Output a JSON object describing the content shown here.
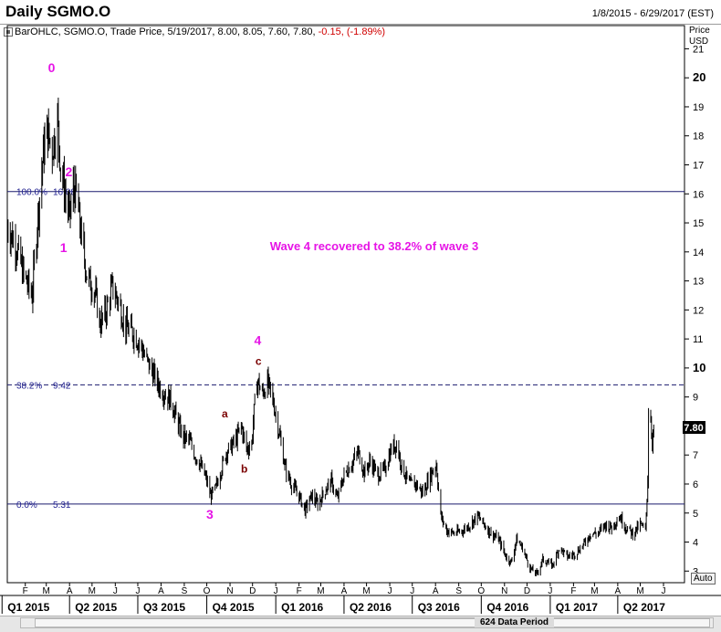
{
  "header": {
    "title": "Daily SGMO.O",
    "date_range": "1/8/2015 - 6/29/2017 (EST)",
    "ohlc_info": "BarOHLC, SGMO.O, Trade Price, 5/19/2017, 8.00, 8.05, 7.60, 7.80,",
    "change": "-0.15, (-1.89%)"
  },
  "axis": {
    "price_unit_line1": "Price",
    "price_unit_line2": "USD",
    "last_price": "7.80"
  },
  "footer": {
    "data_period": "624 Data Period",
    "auto_label": "Auto"
  },
  "annotation_text": "Wave 4 recovered to 38.2% of wave 3",
  "colors": {
    "wave_label": "#e614e6",
    "abc_label": "#7a0000",
    "fib_line": "#1a1a6e",
    "fib_text": "#1f1f8f",
    "bars": "#000000"
  },
  "chart_data": {
    "type": "ohlc",
    "title": "Daily SGMO.O",
    "x_range": [
      "2015-01-08",
      "2017-06-29"
    ],
    "y_range": [
      2.6,
      21.8
    ],
    "y_ticks": [
      3,
      4,
      5,
      6,
      7,
      8,
      9,
      10,
      11,
      12,
      13,
      14,
      15,
      16,
      17,
      18,
      19,
      20,
      21
    ],
    "bold_ticks": [
      10,
      20
    ],
    "month_labels": [
      {
        "label": "F",
        "date": "2015-02-01"
      },
      {
        "label": "M",
        "date": "2015-03-01"
      },
      {
        "label": "A",
        "date": "2015-04-01"
      },
      {
        "label": "M",
        "date": "2015-05-01"
      },
      {
        "label": "J",
        "date": "2015-06-01"
      },
      {
        "label": "J",
        "date": "2015-07-01"
      },
      {
        "label": "A",
        "date": "2015-08-01"
      },
      {
        "label": "S",
        "date": "2015-09-01"
      },
      {
        "label": "O",
        "date": "2015-10-01"
      },
      {
        "label": "N",
        "date": "2015-11-01"
      },
      {
        "label": "D",
        "date": "2015-12-01"
      },
      {
        "label": "J",
        "date": "2016-01-01"
      },
      {
        "label": "F",
        "date": "2016-02-01"
      },
      {
        "label": "M",
        "date": "2016-03-01"
      },
      {
        "label": "A",
        "date": "2016-04-01"
      },
      {
        "label": "M",
        "date": "2016-05-01"
      },
      {
        "label": "J",
        "date": "2016-06-01"
      },
      {
        "label": "J",
        "date": "2016-07-01"
      },
      {
        "label": "A",
        "date": "2016-08-01"
      },
      {
        "label": "S",
        "date": "2016-09-01"
      },
      {
        "label": "O",
        "date": "2016-10-01"
      },
      {
        "label": "N",
        "date": "2016-11-01"
      },
      {
        "label": "D",
        "date": "2016-12-01"
      },
      {
        "label": "J",
        "date": "2017-01-01"
      },
      {
        "label": "F",
        "date": "2017-02-01"
      },
      {
        "label": "M",
        "date": "2017-03-01"
      },
      {
        "label": "A",
        "date": "2017-04-01"
      },
      {
        "label": "M",
        "date": "2017-05-01"
      },
      {
        "label": "J",
        "date": "2017-06-01"
      }
    ],
    "quarter_labels": [
      {
        "label": "Q1 2015",
        "date": "2015-01-01"
      },
      {
        "label": "Q2 2015",
        "date": "2015-04-01"
      },
      {
        "label": "Q3 2015",
        "date": "2015-07-01"
      },
      {
        "label": "Q4 2015",
        "date": "2015-10-01"
      },
      {
        "label": "Q1 2016",
        "date": "2016-01-01"
      },
      {
        "label": "Q2 2016",
        "date": "2016-04-01"
      },
      {
        "label": "Q3 2016",
        "date": "2016-07-01"
      },
      {
        "label": "Q4 2016",
        "date": "2016-10-01"
      },
      {
        "label": "Q1 2017",
        "date": "2017-01-01"
      },
      {
        "label": "Q2 2017",
        "date": "2017-04-01"
      }
    ],
    "fib_levels": [
      {
        "pct": "100.0%",
        "value": 16.08,
        "value_label": "16.08",
        "style": "solid"
      },
      {
        "pct": "38.2%",
        "value": 9.42,
        "value_label": "9.42",
        "style": "dashed"
      },
      {
        "pct": "0.0%",
        "value": 5.31,
        "value_label": "5.31",
        "style": "solid"
      }
    ],
    "price_path": [
      [
        "2015-01-08",
        14.9
      ],
      [
        "2015-01-20",
        14.2
      ],
      [
        "2015-01-30",
        13.2
      ],
      [
        "2015-02-10",
        12.5
      ],
      [
        "2015-02-18",
        15.3
      ],
      [
        "2015-02-25",
        17.4
      ],
      [
        "2015-03-02",
        18.2
      ],
      [
        "2015-03-09",
        17.5
      ],
      [
        "2015-03-16",
        18.6
      ],
      [
        "2015-03-20",
        17.0
      ],
      [
        "2015-03-26",
        16.0
      ],
      [
        "2015-04-01",
        15.2
      ],
      [
        "2015-04-06",
        16.2
      ],
      [
        "2015-04-10",
        16.0
      ],
      [
        "2015-04-16",
        14.7
      ],
      [
        "2015-04-24",
        13.2
      ],
      [
        "2015-05-05",
        12.6
      ],
      [
        "2015-05-12",
        11.5
      ],
      [
        "2015-05-20",
        12.0
      ],
      [
        "2015-05-28",
        12.8
      ],
      [
        "2015-06-05",
        12.3
      ],
      [
        "2015-06-15",
        11.4
      ],
      [
        "2015-06-25",
        11.2
      ],
      [
        "2015-07-05",
        10.8
      ],
      [
        "2015-07-12",
        10.3
      ],
      [
        "2015-07-20",
        9.9
      ],
      [
        "2015-07-29",
        9.4
      ],
      [
        "2015-08-06",
        9.1
      ],
      [
        "2015-08-14",
        8.9
      ],
      [
        "2015-08-22",
        8.2
      ],
      [
        "2015-08-31",
        7.6
      ],
      [
        "2015-09-08",
        7.5
      ],
      [
        "2015-09-15",
        7.0
      ],
      [
        "2015-09-22",
        6.7
      ],
      [
        "2015-09-30",
        6.2
      ],
      [
        "2015-10-06",
        5.6
      ],
      [
        "2015-10-12",
        5.8
      ],
      [
        "2015-10-19",
        6.4
      ],
      [
        "2015-10-27",
        7.1
      ],
      [
        "2015-11-03",
        7.3
      ],
      [
        "2015-11-10",
        7.6
      ],
      [
        "2015-11-16",
        8.0
      ],
      [
        "2015-11-23",
        7.2
      ],
      [
        "2015-11-30",
        7.4
      ],
      [
        "2015-12-03",
        8.5
      ],
      [
        "2015-12-07",
        9.6
      ],
      [
        "2015-12-14",
        9.1
      ],
      [
        "2015-12-21",
        9.5
      ],
      [
        "2015-12-29",
        8.8
      ],
      [
        "2016-01-06",
        7.7
      ],
      [
        "2016-01-14",
        6.5
      ],
      [
        "2016-01-22",
        6.0
      ],
      [
        "2016-02-01",
        5.6
      ],
      [
        "2016-02-09",
        5.1
      ],
      [
        "2016-02-18",
        5.6
      ],
      [
        "2016-02-26",
        5.3
      ],
      [
        "2016-03-07",
        5.8
      ],
      [
        "2016-03-15",
        6.1
      ],
      [
        "2016-03-23",
        5.5
      ],
      [
        "2016-04-01",
        6.3
      ],
      [
        "2016-04-11",
        6.7
      ],
      [
        "2016-04-20",
        7.1
      ],
      [
        "2016-04-28",
        6.4
      ],
      [
        "2016-05-06",
        6.8
      ],
      [
        "2016-05-16",
        6.3
      ],
      [
        "2016-05-25",
        6.5
      ],
      [
        "2016-06-03",
        7.2
      ],
      [
        "2016-06-10",
        7.4
      ],
      [
        "2016-06-17",
        6.6
      ],
      [
        "2016-06-27",
        6.0
      ],
      [
        "2016-07-06",
        6.0
      ],
      [
        "2016-07-15",
        5.7
      ],
      [
        "2016-07-25",
        6.3
      ],
      [
        "2016-08-02",
        6.7
      ],
      [
        "2016-08-08",
        4.9
      ],
      [
        "2016-08-16",
        4.4
      ],
      [
        "2016-08-26",
        4.3
      ],
      [
        "2016-09-06",
        4.4
      ],
      [
        "2016-09-16",
        4.6
      ],
      [
        "2016-09-26",
        4.9
      ],
      [
        "2016-10-05",
        4.6
      ],
      [
        "2016-10-14",
        4.3
      ],
      [
        "2016-10-24",
        4.1
      ],
      [
        "2016-11-03",
        3.5
      ],
      [
        "2016-11-10",
        3.3
      ],
      [
        "2016-11-17",
        4.1
      ],
      [
        "2016-11-25",
        3.8
      ],
      [
        "2016-12-05",
        3.1
      ],
      [
        "2016-12-14",
        2.9
      ],
      [
        "2016-12-22",
        3.4
      ],
      [
        "2017-01-04",
        3.2
      ],
      [
        "2017-01-13",
        3.8
      ],
      [
        "2017-01-24",
        3.5
      ],
      [
        "2017-02-03",
        3.6
      ],
      [
        "2017-02-14",
        3.9
      ],
      [
        "2017-02-24",
        4.3
      ],
      [
        "2017-03-06",
        4.3
      ],
      [
        "2017-03-15",
        4.6
      ],
      [
        "2017-03-24",
        4.5
      ],
      [
        "2017-04-03",
        4.9
      ],
      [
        "2017-04-12",
        4.5
      ],
      [
        "2017-04-21",
        4.3
      ],
      [
        "2017-05-01",
        4.6
      ],
      [
        "2017-05-08",
        4.4
      ],
      [
        "2017-05-11",
        6.2
      ],
      [
        "2017-05-12",
        8.5
      ],
      [
        "2017-05-15",
        8.2
      ],
      [
        "2017-05-17",
        7.5
      ],
      [
        "2017-05-19",
        7.8
      ]
    ],
    "wave_labels": [
      {
        "label": "0",
        "date": "2015-03-08",
        "value": 20.2,
        "kind": "wave"
      },
      {
        "label": "1",
        "date": "2015-03-24",
        "value": 14.0,
        "kind": "wave"
      },
      {
        "label": "2",
        "date": "2015-03-31",
        "value": 16.6,
        "kind": "wave"
      },
      {
        "label": "3",
        "date": "2015-10-05",
        "value": 4.8,
        "kind": "wave"
      },
      {
        "label": "4",
        "date": "2015-12-08",
        "value": 10.8,
        "kind": "wave"
      },
      {
        "label": "a",
        "date": "2015-10-25",
        "value": 8.3,
        "kind": "abc"
      },
      {
        "label": "b",
        "date": "2015-11-20",
        "value": 6.4,
        "kind": "abc"
      },
      {
        "label": "c",
        "date": "2015-12-09",
        "value": 10.1,
        "kind": "abc"
      }
    ]
  }
}
